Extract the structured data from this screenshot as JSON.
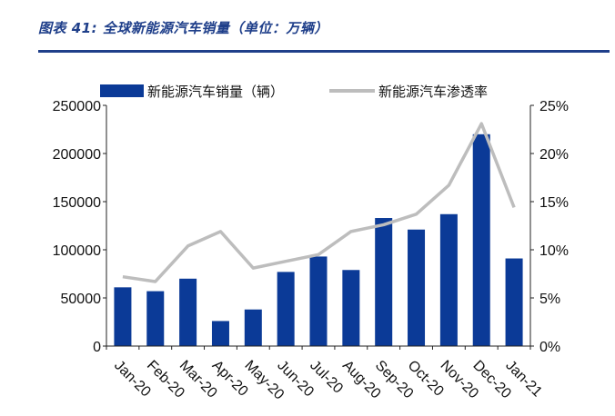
{
  "figure": {
    "title": "图表 41:  全球新能源汽车销量（单位：万辆）"
  },
  "chart_data": {
    "type": "bar",
    "categories": [
      "Jan-20",
      "Feb-20",
      "Mar-20",
      "Apr-20",
      "May-20",
      "Jun-20",
      "Jul-20",
      "Aug-20",
      "Sep-20",
      "Oct-20",
      "Nov-20",
      "Dec-20",
      "Jan-21"
    ],
    "series": [
      {
        "name": "新能源汽车销量（辆）",
        "type": "bar",
        "axis": "left",
        "color": "#0b3a97",
        "values": [
          61000,
          57000,
          70000,
          26000,
          38000,
          77000,
          93000,
          79000,
          133000,
          121000,
          137000,
          220000,
          91000
        ]
      },
      {
        "name": "新能源汽车渗透率",
        "type": "line",
        "axis": "right",
        "color": "#bdbdbd",
        "values": [
          7.2,
          6.7,
          10.4,
          11.9,
          8.1,
          8.8,
          9.5,
          11.9,
          12.6,
          13.7,
          16.7,
          23.1,
          14.4
        ]
      }
    ],
    "y_left": {
      "ylim": [
        0,
        250000
      ],
      "ticks": [
        "0",
        "50000",
        "100000",
        "150000",
        "200000",
        "250000"
      ]
    },
    "y_right": {
      "ylim": [
        0,
        25
      ],
      "ticks": [
        "0%",
        "5%",
        "10%",
        "15%",
        "20%",
        "25%"
      ]
    },
    "xlabel": "",
    "ylabel": "",
    "legend": "top",
    "grid": false
  }
}
